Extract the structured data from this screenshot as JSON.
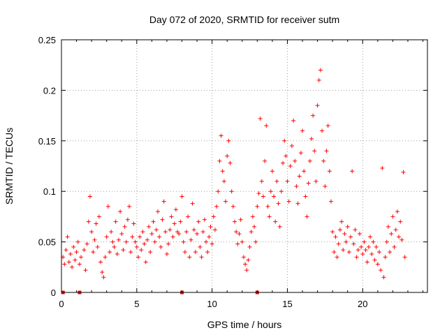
{
  "chart_data": {
    "type": "scatter",
    "title": "Day 072 of 2020, SRMTID for receiver sutm",
    "xlabel": "GPS time / hours",
    "ylabel": "SRMTID / TECUs",
    "xlim": [
      0,
      24.3
    ],
    "ylim": [
      0,
      0.25
    ],
    "xticks": [
      0,
      5,
      10,
      15,
      20
    ],
    "xtick_labels": [
      "0",
      "5",
      "10",
      "15",
      "20"
    ],
    "yticks": [
      0,
      0.05,
      0.1,
      0.15,
      0.2,
      0.25
    ],
    "ytick_labels": [
      "0",
      "0.05",
      "0.1",
      "0.15",
      "0.2",
      "0.25"
    ],
    "grid": true,
    "legend": "none",
    "marker": "plus",
    "color": "#ff0000",
    "series": [
      {
        "name": "SRMTID",
        "points": [
          [
            0.1,
            0.035
          ],
          [
            0.2,
            0.028
          ],
          [
            0.3,
            0.042
          ],
          [
            0.4,
            0.055
          ],
          [
            0.5,
            0.03
          ],
          [
            0.6,
            0.038
          ],
          [
            0.7,
            0.025
          ],
          [
            0.8,
            0.045
          ],
          [
            0.9,
            0.032
          ],
          [
            1.0,
            0.04
          ],
          [
            1.1,
            0.05
          ],
          [
            1.2,
            0.028
          ],
          [
            1.3,
            0.035
          ],
          [
            1.5,
            0.042
          ],
          [
            1.6,
            0.022
          ],
          [
            1.7,
            0.048
          ],
          [
            1.8,
            0.07
          ],
          [
            1.9,
            0.095
          ],
          [
            2.0,
            0.06
          ],
          [
            2.1,
            0.04
          ],
          [
            2.2,
            0.052
          ],
          [
            2.3,
            0.068
          ],
          [
            2.4,
            0.045
          ],
          [
            2.5,
            0.075
          ],
          [
            2.6,
            0.03
          ],
          [
            2.7,
            0.02
          ],
          [
            2.8,
            0.015
          ],
          [
            2.9,
            0.035
          ],
          [
            3.0,
            0.055
          ],
          [
            3.1,
            0.085
          ],
          [
            3.2,
            0.04
          ],
          [
            3.3,
            0.06
          ],
          [
            3.4,
            0.05
          ],
          [
            3.5,
            0.045
          ],
          [
            3.6,
            0.07
          ],
          [
            3.7,
            0.038
          ],
          [
            3.8,
            0.052
          ],
          [
            3.9,
            0.08
          ],
          [
            4.0,
            0.058
          ],
          [
            4.1,
            0.042
          ],
          [
            4.2,
            0.065
          ],
          [
            4.3,
            0.05
          ],
          [
            4.4,
            0.072
          ],
          [
            4.5,
            0.085
          ],
          [
            4.6,
            0.04
          ],
          [
            4.7,
            0.055
          ],
          [
            4.8,
            0.068
          ],
          [
            4.9,
            0.05
          ],
          [
            5.0,
            0.045
          ],
          [
            5.1,
            0.035
          ],
          [
            5.2,
            0.055
          ],
          [
            5.3,
            0.042
          ],
          [
            5.4,
            0.06
          ],
          [
            5.5,
            0.048
          ],
          [
            5.6,
            0.03
          ],
          [
            5.7,
            0.052
          ],
          [
            5.8,
            0.065
          ],
          [
            5.9,
            0.04
          ],
          [
            6.0,
            0.058
          ],
          [
            6.1,
            0.07
          ],
          [
            6.2,
            0.05
          ],
          [
            6.3,
            0.062
          ],
          [
            6.4,
            0.08
          ],
          [
            6.5,
            0.055
          ],
          [
            6.6,
            0.045
          ],
          [
            6.7,
            0.072
          ],
          [
            6.8,
            0.09
          ],
          [
            6.9,
            0.06
          ],
          [
            7.0,
            0.038
          ],
          [
            7.1,
            0.048
          ],
          [
            7.2,
            0.062
          ],
          [
            7.3,
            0.075
          ],
          [
            7.4,
            0.055
          ],
          [
            7.5,
            0.068
          ],
          [
            7.6,
            0.082
          ],
          [
            7.7,
            0.06
          ],
          [
            7.8,
            0.058
          ],
          [
            7.9,
            0.07
          ],
          [
            8.0,
            0.095
          ],
          [
            8.1,
            0.05
          ],
          [
            8.2,
            0.04
          ],
          [
            8.3,
            0.06
          ],
          [
            8.4,
            0.075
          ],
          [
            8.5,
            0.035
          ],
          [
            8.6,
            0.052
          ],
          [
            8.7,
            0.088
          ],
          [
            8.8,
            0.062
          ],
          [
            8.9,
            0.04
          ],
          [
            9.0,
            0.058
          ],
          [
            9.1,
            0.07
          ],
          [
            9.2,
            0.045
          ],
          [
            9.3,
            0.035
          ],
          [
            9.4,
            0.06
          ],
          [
            9.5,
            0.072
          ],
          [
            9.6,
            0.05
          ],
          [
            9.7,
            0.04
          ],
          [
            9.8,
            0.055
          ],
          [
            9.9,
            0.065
          ],
          [
            10.0,
            0.048
          ],
          [
            10.1,
            0.075
          ],
          [
            10.2,
            0.062
          ],
          [
            10.3,
            0.085
          ],
          [
            10.4,
            0.1
          ],
          [
            10.5,
            0.13
          ],
          [
            10.6,
            0.155
          ],
          [
            10.7,
            0.12
          ],
          [
            10.8,
            0.11
          ],
          [
            10.9,
            0.09
          ],
          [
            11.0,
            0.135
          ],
          [
            11.1,
            0.15
          ],
          [
            11.2,
            0.128
          ],
          [
            11.3,
            0.1
          ],
          [
            11.4,
            0.085
          ],
          [
            11.5,
            0.07
          ],
          [
            11.6,
            0.06
          ],
          [
            11.7,
            0.048
          ],
          [
            11.8,
            0.058
          ],
          [
            11.9,
            0.072
          ],
          [
            12.0,
            0.05
          ],
          [
            12.1,
            0.035
          ],
          [
            12.2,
            0.028
          ],
          [
            12.3,
            0.022
          ],
          [
            12.4,
            0.032
          ],
          [
            12.5,
            0.045
          ],
          [
            12.6,
            0.06
          ],
          [
            12.7,
            0.075
          ],
          [
            12.8,
            0.065
          ],
          [
            12.9,
            0.05
          ],
          [
            13.0,
            0.085
          ],
          [
            13.1,
            0.098
          ],
          [
            13.2,
            0.172
          ],
          [
            13.3,
            0.11
          ],
          [
            13.4,
            0.095
          ],
          [
            13.5,
            0.13
          ],
          [
            13.6,
            0.165
          ],
          [
            13.7,
            0.085
          ],
          [
            13.8,
            0.075
          ],
          [
            13.9,
            0.1
          ],
          [
            14.0,
            0.12
          ],
          [
            14.1,
            0.095
          ],
          [
            14.2,
            0.07
          ],
          [
            14.3,
            0.11
          ],
          [
            14.4,
            0.088
          ],
          [
            14.5,
            0.065
          ],
          [
            14.6,
            0.1
          ],
          [
            14.7,
            0.128
          ],
          [
            14.8,
            0.15
          ],
          [
            14.9,
            0.135
          ],
          [
            15.0,
            0.11
          ],
          [
            15.1,
            0.09
          ],
          [
            15.2,
            0.125
          ],
          [
            15.3,
            0.145
          ],
          [
            15.4,
            0.17
          ],
          [
            15.5,
            0.13
          ],
          [
            15.6,
            0.105
          ],
          [
            15.7,
            0.088
          ],
          [
            15.8,
            0.115
          ],
          [
            15.9,
            0.138
          ],
          [
            16.0,
            0.16
          ],
          [
            16.1,
            0.12
          ],
          [
            16.2,
            0.095
          ],
          [
            16.3,
            0.075
          ],
          [
            16.4,
            0.108
          ],
          [
            16.5,
            0.13
          ],
          [
            16.6,
            0.152
          ],
          [
            16.7,
            0.175
          ],
          [
            16.8,
            0.14
          ],
          [
            16.9,
            0.11
          ],
          [
            17.0,
            0.185
          ],
          [
            17.1,
            0.21
          ],
          [
            17.2,
            0.22
          ],
          [
            17.3,
            0.16
          ],
          [
            17.4,
            0.13
          ],
          [
            17.5,
            0.105
          ],
          [
            17.6,
            0.14
          ],
          [
            17.7,
            0.165
          ],
          [
            17.8,
            0.12
          ],
          [
            17.9,
            0.09
          ],
          [
            18.0,
            0.06
          ],
          [
            18.1,
            0.04
          ],
          [
            18.2,
            0.055
          ],
          [
            18.3,
            0.035
          ],
          [
            18.4,
            0.048
          ],
          [
            18.5,
            0.062
          ],
          [
            18.6,
            0.07
          ],
          [
            18.7,
            0.042
          ],
          [
            18.8,
            0.058
          ],
          [
            18.9,
            0.05
          ],
          [
            19.0,
            0.065
          ],
          [
            19.1,
            0.04
          ],
          [
            19.2,
            0.055
          ],
          [
            19.3,
            0.12
          ],
          [
            19.4,
            0.048
          ],
          [
            19.5,
            0.062
          ],
          [
            19.6,
            0.035
          ],
          [
            19.7,
            0.042
          ],
          [
            19.8,
            0.058
          ],
          [
            19.9,
            0.045
          ],
          [
            20.0,
            0.038
          ],
          [
            20.1,
            0.05
          ],
          [
            20.2,
            0.042
          ],
          [
            20.3,
            0.03
          ],
          [
            20.4,
            0.045
          ],
          [
            20.5,
            0.055
          ],
          [
            20.6,
            0.038
          ],
          [
            20.7,
            0.05
          ],
          [
            20.8,
            0.032
          ],
          [
            20.9,
            0.045
          ],
          [
            21.0,
            0.028
          ],
          [
            21.1,
            0.04
          ],
          [
            21.2,
            0.022
          ],
          [
            21.3,
            0.123
          ],
          [
            21.4,
            0.015
          ],
          [
            21.5,
            0.035
          ],
          [
            21.6,
            0.05
          ],
          [
            21.7,
            0.065
          ],
          [
            21.8,
            0.04
          ],
          [
            21.9,
            0.058
          ],
          [
            22.0,
            0.075
          ],
          [
            22.1,
            0.045
          ],
          [
            22.2,
            0.062
          ],
          [
            22.3,
            0.08
          ],
          [
            22.4,
            0.055
          ],
          [
            22.5,
            0.07
          ],
          [
            22.6,
            0.052
          ],
          [
            22.7,
            0.119
          ],
          [
            22.8,
            0.035
          ]
        ]
      }
    ],
    "axis_markers": {
      "name": "data gaps",
      "x": [
        0.1,
        1.2,
        8.0,
        13.0
      ]
    }
  }
}
